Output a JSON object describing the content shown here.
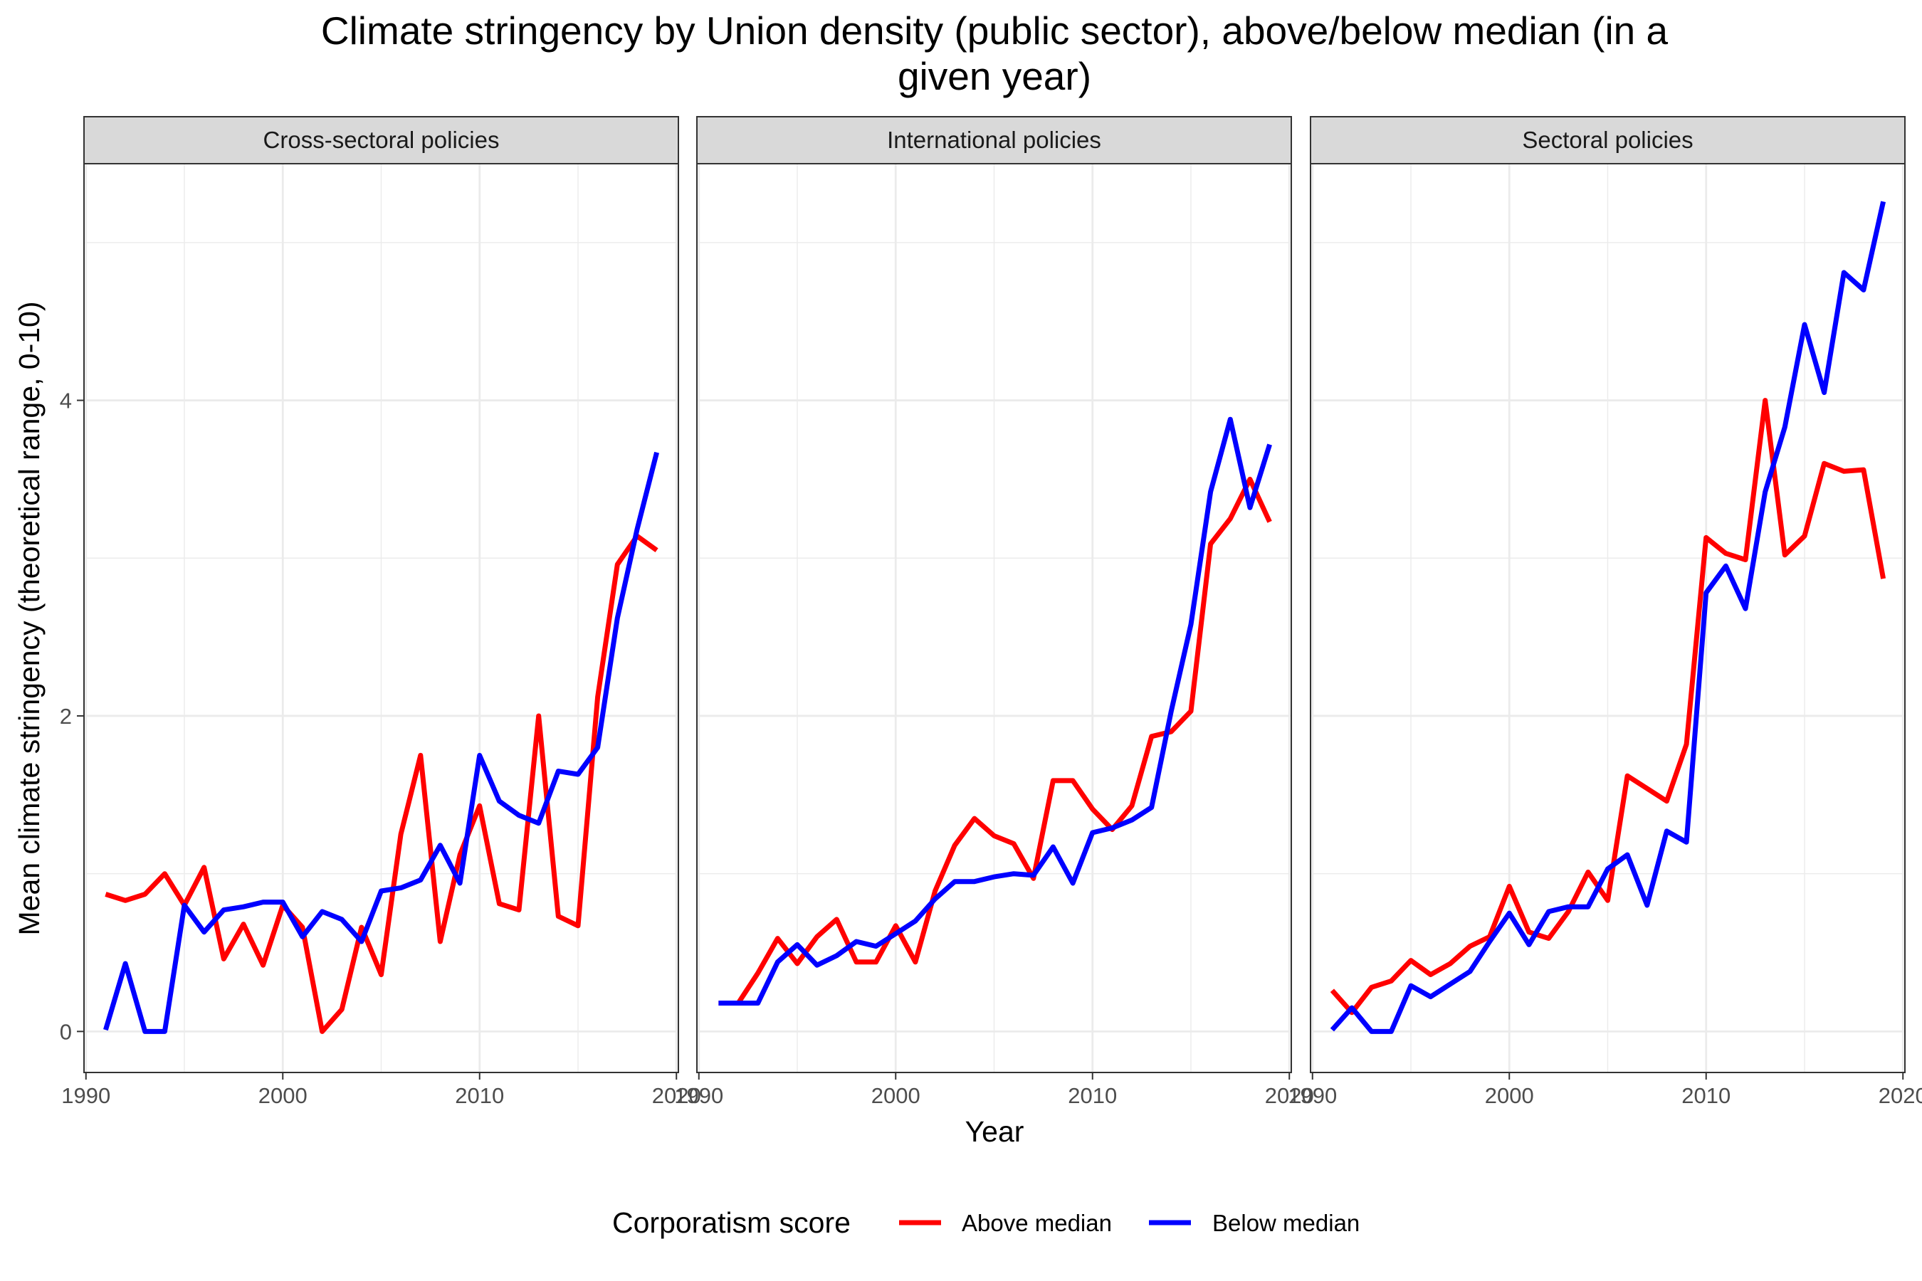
{
  "chart_data": {
    "type": "line",
    "title_lines": [
      "Climate stringency by Union density (public sector), above/below median (in a",
      "given year)"
    ],
    "xlabel": "Year",
    "ylabel": "Mean climate stringency (theoretical range, 0-10)",
    "xlim": [
      1989.9,
      2020.1
    ],
    "ylim": [
      -0.26,
      5.5
    ],
    "x_ticks": [
      1990,
      2000,
      2010,
      2020
    ],
    "x_tick_labels": [
      "1990",
      "2000",
      "2010",
      "2020"
    ],
    "y_ticks": [
      0,
      2,
      4
    ],
    "y_tick_labels": [
      "0",
      "2",
      "4"
    ],
    "grid": true,
    "legend": {
      "title": "Corporatism score",
      "position": "bottom",
      "entries": [
        {
          "label": "Above median",
          "color": "#ff0000"
        },
        {
          "label": "Below median",
          "color": "#0000ff"
        }
      ]
    },
    "x": [
      1991,
      1992,
      1993,
      1994,
      1995,
      1996,
      1997,
      1998,
      1999,
      2000,
      2001,
      2002,
      2003,
      2004,
      2005,
      2006,
      2007,
      2008,
      2009,
      2010,
      2011,
      2012,
      2013,
      2014,
      2015,
      2016,
      2017,
      2018,
      2019
    ],
    "panels": [
      {
        "name": "Cross-sectoral policies",
        "series": [
          {
            "name": "Above median",
            "color": "#ff0000",
            "values": [
              0.87,
              0.83,
              0.87,
              1.0,
              0.8,
              1.04,
              0.46,
              0.68,
              0.42,
              0.8,
              0.66,
              0.0,
              0.14,
              0.66,
              0.36,
              1.25,
              1.75,
              0.57,
              1.12,
              1.43,
              0.81,
              0.77,
              2.0,
              0.73,
              0.67,
              2.12,
              2.96,
              3.14,
              3.05
            ]
          },
          {
            "name": "Below median",
            "color": "#0000ff",
            "values": [
              0.01,
              0.43,
              0.0,
              0.0,
              0.8,
              0.63,
              0.77,
              0.79,
              0.82,
              0.82,
              0.6,
              0.76,
              0.71,
              0.57,
              0.89,
              0.91,
              0.96,
              1.18,
              0.94,
              1.75,
              1.46,
              1.37,
              1.32,
              1.65,
              1.63,
              1.8,
              2.62,
              3.18,
              3.67
            ]
          }
        ]
      },
      {
        "name": "International policies",
        "series": [
          {
            "name": "Above median",
            "color": "#ff0000",
            "values": [
              0.18,
              0.18,
              0.37,
              0.59,
              0.43,
              0.6,
              0.71,
              0.44,
              0.44,
              0.67,
              0.44,
              0.89,
              1.18,
              1.35,
              1.24,
              1.19,
              0.97,
              1.59,
              1.59,
              1.41,
              1.28,
              1.43,
              1.87,
              1.9,
              2.03,
              3.09,
              3.25,
              3.5,
              3.23
            ]
          },
          {
            "name": "Below median",
            "color": "#0000ff",
            "values": [
              0.18,
              0.18,
              0.18,
              0.44,
              0.55,
              0.42,
              0.48,
              0.57,
              0.54,
              0.62,
              0.7,
              0.84,
              0.95,
              0.95,
              0.98,
              1.0,
              0.99,
              1.17,
              0.94,
              1.26,
              1.29,
              1.34,
              1.42,
              2.03,
              2.58,
              3.42,
              3.88,
              3.32,
              3.72
            ]
          }
        ]
      },
      {
        "name": "Sectoral policies",
        "series": [
          {
            "name": "Above median",
            "color": "#ff0000",
            "values": [
              0.26,
              0.12,
              0.28,
              0.32,
              0.45,
              0.36,
              0.43,
              0.54,
              0.6,
              0.92,
              0.63,
              0.59,
              0.76,
              1.01,
              0.83,
              1.62,
              1.54,
              1.46,
              1.82,
              3.13,
              3.03,
              2.99,
              4.0,
              3.02,
              3.14,
              3.6,
              3.55,
              3.56,
              2.87
            ]
          },
          {
            "name": "Below median",
            "color": "#0000ff",
            "values": [
              0.01,
              0.15,
              0.0,
              0.0,
              0.29,
              0.22,
              0.3,
              0.38,
              0.57,
              0.75,
              0.55,
              0.76,
              0.79,
              0.79,
              1.03,
              1.12,
              0.8,
              1.27,
              1.2,
              2.78,
              2.95,
              2.68,
              3.42,
              3.83,
              4.48,
              4.05,
              4.81,
              4.7,
              5.26
            ]
          }
        ]
      }
    ]
  }
}
